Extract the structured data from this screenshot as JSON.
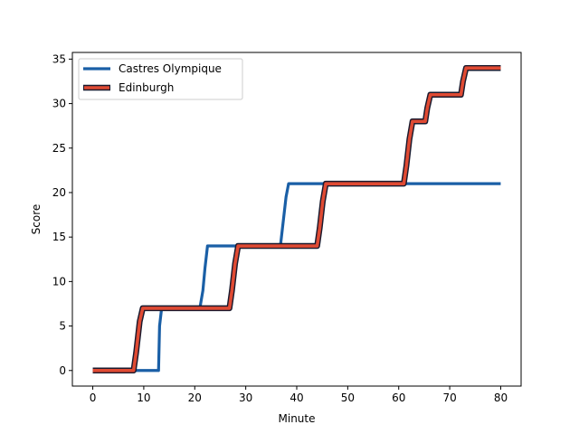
{
  "chart_data": {
    "type": "line",
    "title": "",
    "xlabel": "Minute",
    "ylabel": "Score",
    "xlim": [
      -4,
      84
    ],
    "ylim": [
      -1.75,
      35.75
    ],
    "xticks": [
      0,
      10,
      20,
      30,
      40,
      50,
      60,
      70,
      80
    ],
    "yticks": [
      0,
      5,
      10,
      15,
      20,
      25,
      30,
      35
    ],
    "grid": false,
    "legend_position": "top-left",
    "series": [
      {
        "name": "Castres Olympique",
        "color": "#1a5fa6",
        "points": [
          [
            0,
            0
          ],
          [
            12.9,
            0
          ],
          [
            13.1,
            5
          ],
          [
            13.5,
            7
          ],
          [
            14,
            7
          ],
          [
            21,
            7
          ],
          [
            21.6,
            9
          ],
          [
            22,
            11.5
          ],
          [
            22.5,
            14
          ],
          [
            23,
            14
          ],
          [
            36.8,
            14
          ],
          [
            37.4,
            17
          ],
          [
            37.9,
            19.5
          ],
          [
            38.4,
            21
          ],
          [
            39,
            21
          ],
          [
            80,
            21
          ]
        ]
      },
      {
        "name": "Edinburgh",
        "color": "#e04a33",
        "outline": "#1a1a2e",
        "points": [
          [
            0,
            0
          ],
          [
            8,
            0
          ],
          [
            8.5,
            2
          ],
          [
            9.2,
            5.5
          ],
          [
            9.8,
            7
          ],
          [
            10.5,
            7
          ],
          [
            26.8,
            7
          ],
          [
            27.3,
            9
          ],
          [
            27.9,
            12
          ],
          [
            28.5,
            14
          ],
          [
            29,
            14
          ],
          [
            44,
            14
          ],
          [
            44.5,
            16
          ],
          [
            45.1,
            19
          ],
          [
            45.7,
            21
          ],
          [
            46.2,
            21
          ],
          [
            61,
            21
          ],
          [
            61.5,
            23
          ],
          [
            62.1,
            26
          ],
          [
            62.7,
            28
          ],
          [
            63.3,
            28
          ],
          [
            65.2,
            28
          ],
          [
            65.6,
            29.5
          ],
          [
            66.2,
            31
          ],
          [
            66.8,
            31
          ],
          [
            72.2,
            31
          ],
          [
            72.6,
            32.5
          ],
          [
            73.2,
            34
          ],
          [
            73.8,
            34
          ],
          [
            80,
            34
          ]
        ]
      }
    ]
  }
}
